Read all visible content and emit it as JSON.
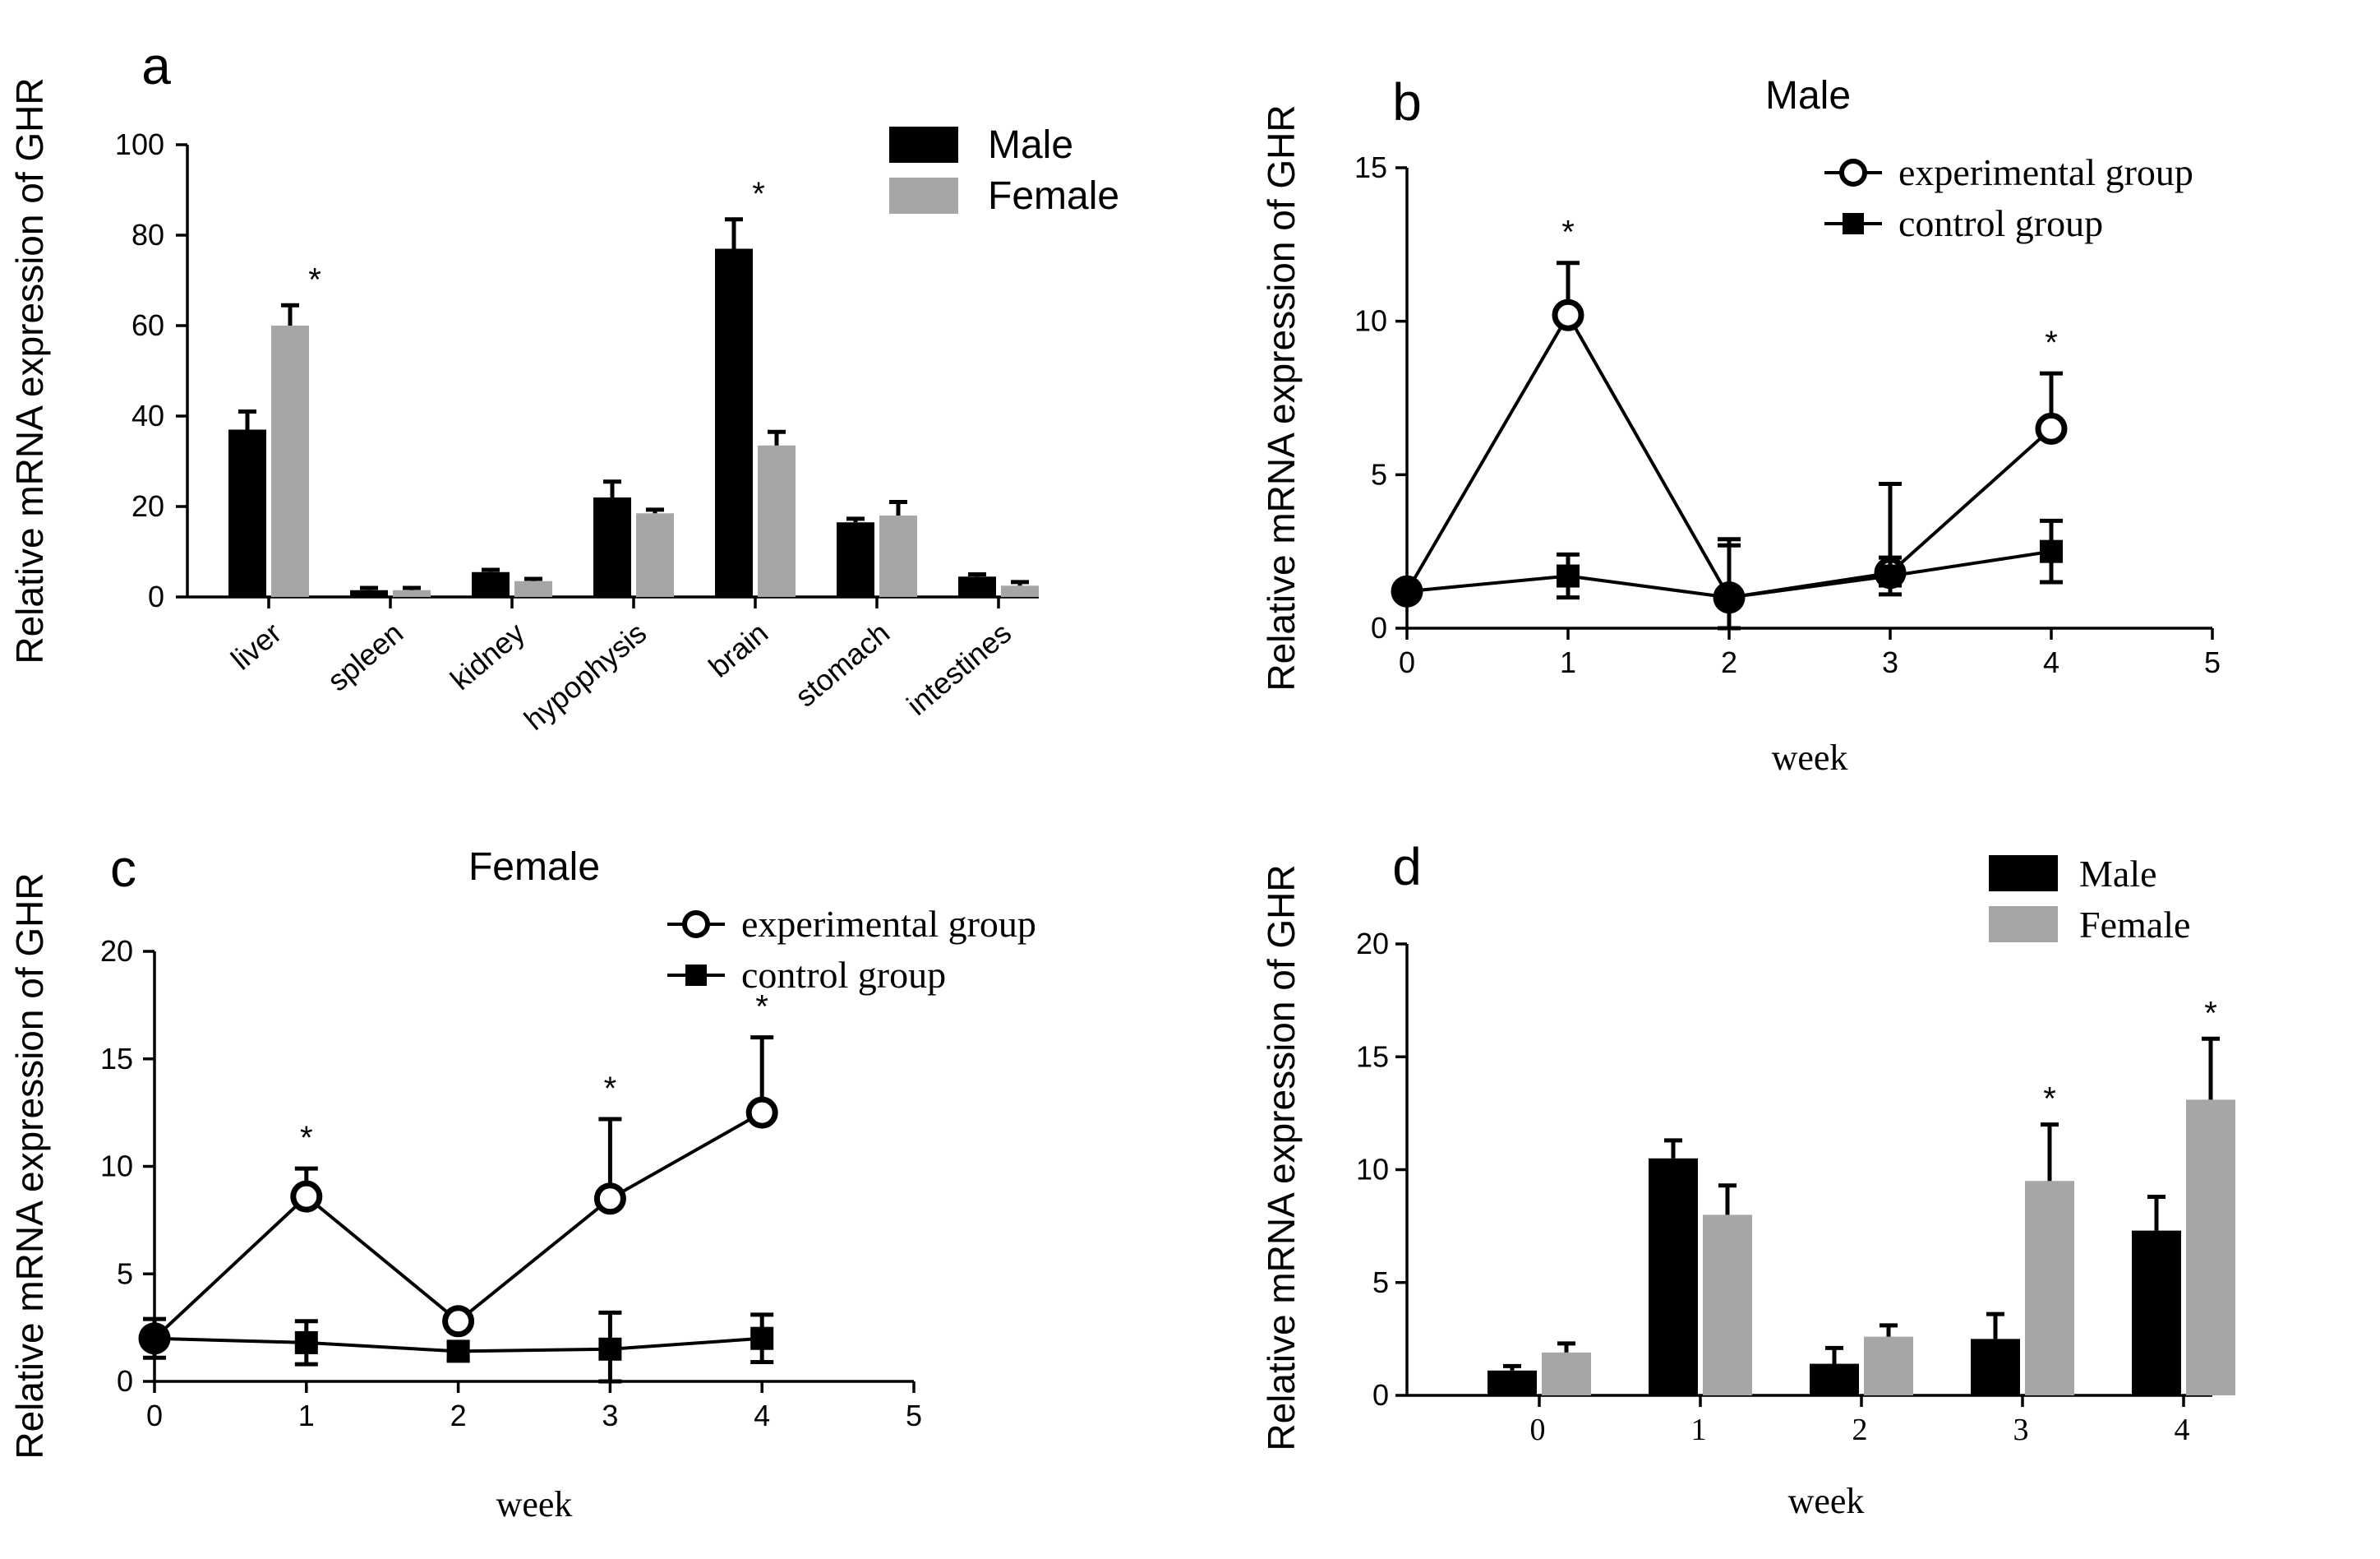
{
  "colors": {
    "male": "#000000",
    "female": "#a6a6a6",
    "axis": "#000000"
  },
  "chart_data": [
    {
      "panel": "a",
      "type": "bar",
      "title": "",
      "ylabel": "Relative mRNA expression of GHR",
      "xlabel": "",
      "ylim": [
        0,
        100
      ],
      "yticks": [
        0,
        20,
        40,
        60,
        80,
        100
      ],
      "categories": [
        "liver",
        "spleen",
        "kidney",
        "hypophysis",
        "brain",
        "stomach",
        "intestines"
      ],
      "series": [
        {
          "name": "Male",
          "values": [
            37,
            1.5,
            5.5,
            22,
            77,
            16.5,
            4.5
          ],
          "errors": [
            4,
            0.5,
            0.5,
            3.5,
            6.5,
            0.8,
            0.5
          ]
        },
        {
          "name": "Female",
          "values": [
            60,
            1.5,
            3.5,
            18.5,
            33.5,
            18,
            2.5
          ],
          "errors": [
            4.5,
            0.5,
            0.5,
            0.8,
            3,
            3,
            0.8
          ]
        }
      ],
      "significance": [
        {
          "label": "*",
          "category": "liver",
          "series": "Female"
        },
        {
          "label": "*",
          "category": "brain",
          "series": "Male"
        }
      ],
      "legend": "top-right"
    },
    {
      "panel": "b",
      "type": "line",
      "title": "Male",
      "ylabel": "Relative mRNA expression of GHR",
      "xlabel": "week",
      "xlim": [
        0,
        5
      ],
      "xticks": [
        0,
        1,
        2,
        3,
        4,
        5
      ],
      "ylim": [
        0,
        15
      ],
      "yticks": [
        0,
        5,
        10,
        15
      ],
      "series": [
        {
          "name": "experimental group",
          "marker": "open-circle",
          "x": [
            0,
            1,
            2,
            3,
            4
          ],
          "values": [
            1.2,
            10.2,
            1,
            1.8,
            6.5
          ],
          "errors": [
            0,
            1.7,
            1.9,
            2.9,
            1.8
          ]
        },
        {
          "name": "control group",
          "marker": "filled-square",
          "x": [
            0,
            1,
            2,
            3,
            4
          ],
          "values": [
            1.2,
            1.7,
            1,
            1.7,
            2.5
          ],
          "errors": [
            0.3,
            0.7,
            1.7,
            0.6,
            1
          ]
        }
      ],
      "significance": [
        {
          "label": "*",
          "x": 1
        },
        {
          "label": "*",
          "x": 4
        }
      ],
      "legend": "top-right"
    },
    {
      "panel": "c",
      "type": "line",
      "title": "Female",
      "ylabel": "Relative mRNA expression of GHR",
      "xlabel": "week",
      "xlim": [
        0,
        5
      ],
      "xticks": [
        0,
        1,
        2,
        3,
        4,
        5
      ],
      "ylim": [
        0,
        20
      ],
      "yticks": [
        0,
        5,
        10,
        15,
        20
      ],
      "series": [
        {
          "name": "experimental group",
          "marker": "open-circle",
          "x": [
            0,
            1,
            2,
            3,
            4
          ],
          "values": [
            2,
            8.6,
            2.8,
            8.5,
            12.5
          ],
          "errors": [
            0,
            1.3,
            0.4,
            3.7,
            3.5
          ]
        },
        {
          "name": "control group",
          "marker": "filled-square",
          "x": [
            0,
            1,
            2,
            3,
            4
          ],
          "values": [
            2,
            1.8,
            1.4,
            1.5,
            2
          ],
          "errors": [
            0.9,
            1,
            0.4,
            1.7,
            1.1
          ]
        }
      ],
      "significance": [
        {
          "label": "*",
          "x": 1
        },
        {
          "label": "*",
          "x": 3
        },
        {
          "label": "*",
          "x": 4
        }
      ],
      "legend": "top-right"
    },
    {
      "panel": "d",
      "type": "bar",
      "title": "",
      "ylabel": "Relative mRNA expression of GHR",
      "xlabel": "week",
      "ylim": [
        0,
        20
      ],
      "yticks": [
        0,
        5,
        10,
        15,
        20
      ],
      "categories": [
        "0",
        "1",
        "2",
        "3",
        "4"
      ],
      "series": [
        {
          "name": "Male",
          "values": [
            1.1,
            10.5,
            1.4,
            2.5,
            7.3
          ],
          "errors": [
            0.2,
            0.8,
            0.7,
            1.1,
            1.5
          ]
        },
        {
          "name": "Female",
          "values": [
            1.9,
            8,
            2.6,
            9.5,
            13.1
          ],
          "errors": [
            0.4,
            1.3,
            0.5,
            2.5,
            2.7
          ]
        }
      ],
      "significance": [
        {
          "label": "*",
          "category": "3",
          "series": "Female"
        },
        {
          "label": "*",
          "category": "4",
          "series": "Female"
        }
      ],
      "legend": "top-right"
    }
  ]
}
